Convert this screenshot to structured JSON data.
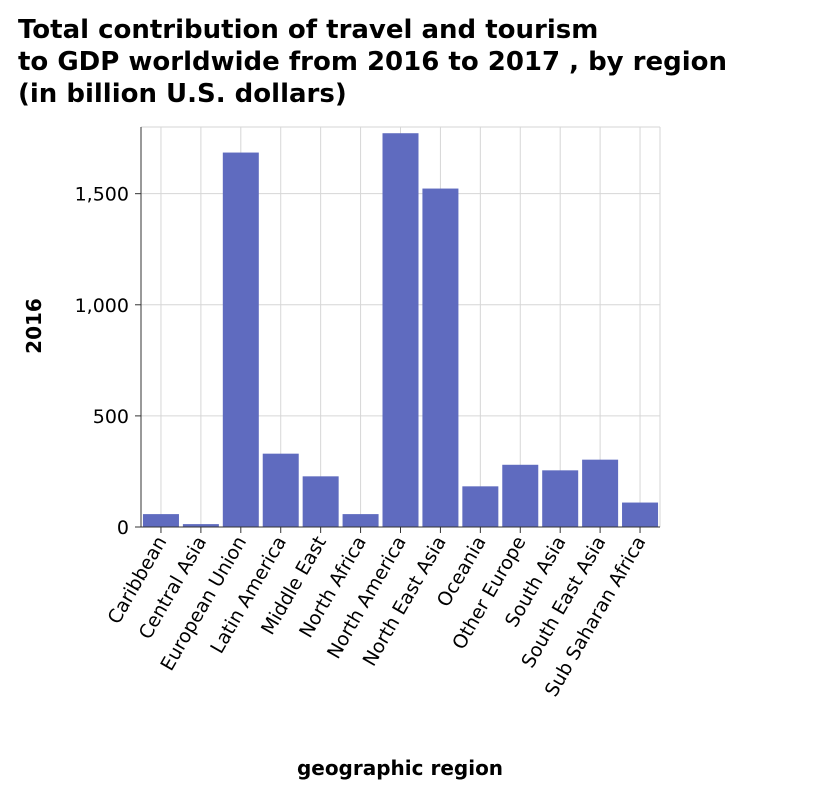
{
  "title_lines": [
    "Total contribution of travel and tourism",
    "to GDP worldwide from 2016 to 2017 , by region",
    "(in billion U.S. dollars)"
  ],
  "chart_data": {
    "type": "bar",
    "title": "Total contribution of travel and tourism to GDP worldwide from 2016 to 2017 , by region (in billion U.S. dollars)",
    "xlabel": "geographic region",
    "ylabel": "2016",
    "categories": [
      "Caribbean",
      "Central Asia",
      "European Union",
      "Latin America",
      "Middle East",
      "North Africa",
      "North America",
      "North East Asia",
      "Oceania",
      "Other Europe",
      "South Asia",
      "South East Asia",
      "Sub Saharan Africa"
    ],
    "values": [
      58,
      13,
      1685,
      330,
      228,
      58,
      1772,
      1523,
      183,
      280,
      255,
      303,
      110
    ],
    "ylim": [
      0,
      1800
    ],
    "yticks": [
      0,
      500,
      1000,
      1500
    ],
    "ytick_labels": [
      "0",
      "500",
      "1,000",
      "1,500"
    ],
    "grid": true,
    "bar_color": "#5f6bbf"
  }
}
